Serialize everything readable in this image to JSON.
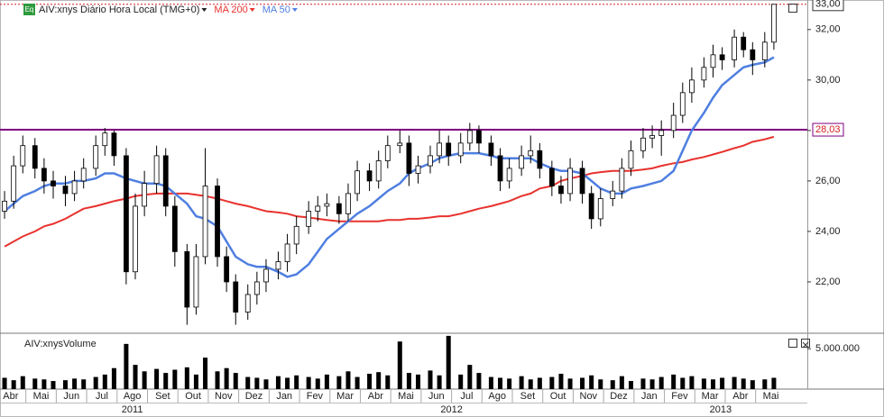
{
  "chart_data": {
    "type": "candlestick",
    "title": "AIV:xnys Diário Hora Local (TMG+0)",
    "badge": "Eq",
    "x": [
      0.3,
      0.6,
      0.9,
      1.3,
      1.6,
      1.9,
      2.3,
      2.6,
      2.9,
      3.3,
      3.6,
      3.9,
      4.3,
      4.6,
      4.9,
      5.3,
      5.6,
      5.9,
      6.3,
      6.6,
      6.9,
      7.3,
      7.6,
      7.9,
      8.3,
      8.6,
      8.9,
      9.3,
      9.6,
      9.9,
      10.3,
      10.6,
      10.9,
      11.3,
      11.6,
      11.9,
      12.3,
      12.6,
      12.9,
      13.3,
      13.6,
      13.9,
      14.3,
      14.6,
      14.9,
      15.3,
      15.6,
      15.9,
      16.3,
      16.6,
      16.9,
      17.3,
      17.6,
      17.9,
      18.3,
      18.6,
      18.9,
      19.3,
      19.6,
      19.9,
      20.3,
      20.6,
      20.9,
      21.3,
      21.6,
      21.9,
      22.3,
      22.6,
      22.9,
      23.3,
      23.6,
      23.9,
      24.3,
      24.6,
      24.9,
      25.3,
      25.6
    ],
    "open": [
      24.8,
      25.2,
      26.6,
      27.4,
      26.5,
      26.0,
      25.8,
      25.5,
      26.0,
      26.5,
      27.4,
      27.9,
      27.0,
      22.4,
      25.0,
      25.9,
      27.0,
      25.0,
      23.2,
      21.0,
      23.0,
      25.8,
      23.0,
      22.0,
      20.8,
      21.5,
      22.0,
      22.5,
      22.8,
      23.5,
      24.2,
      24.8,
      25.0,
      25.1,
      24.7,
      25.5,
      26.4,
      26.0,
      26.8,
      27.4,
      27.5,
      26.3,
      26.6,
      27.0,
      27.5,
      27.0,
      27.5,
      28.0,
      27.5,
      27.0,
      26.0,
      26.5,
      27.0,
      27.2,
      26.5,
      25.8,
      25.5,
      26.5,
      25.5,
      24.5,
      25.3,
      25.6,
      26.5,
      27.2,
      27.7,
      27.8,
      28.0,
      28.6,
      29.5,
      30.0,
      30.5,
      31.0,
      30.8,
      31.7,
      31.2,
      30.8,
      31.5
    ],
    "high": [
      25.6,
      27.0,
      27.8,
      27.7,
      26.9,
      26.4,
      26.2,
      26.4,
      26.9,
      27.8,
      28.1,
      28.0,
      27.3,
      25.5,
      26.4,
      27.4,
      27.3,
      25.4,
      23.5,
      23.5,
      27.3,
      26.1,
      23.4,
      22.3,
      21.9,
      22.4,
      22.9,
      23.2,
      23.9,
      24.6,
      25.2,
      25.4,
      25.5,
      25.4,
      25.9,
      26.8,
      26.7,
      27.2,
      27.8,
      28.0,
      27.8,
      27.0,
      27.4,
      28.0,
      27.8,
      27.9,
      28.3,
      28.2,
      27.8,
      27.3,
      26.9,
      27.4,
      27.8,
      27.5,
      26.8,
      26.2,
      26.9,
      26.8,
      25.8,
      25.7,
      26.0,
      26.9,
      27.6,
      28.1,
      28.2,
      28.4,
      29.1,
      29.9,
      30.5,
      30.9,
      31.4,
      31.3,
      32.0,
      31.9,
      31.5,
      31.9,
      33.0
    ],
    "low": [
      24.5,
      24.9,
      26.3,
      26.1,
      25.5,
      25.3,
      25.0,
      25.2,
      25.7,
      26.2,
      27.0,
      26.6,
      21.9,
      22.1,
      24.6,
      25.5,
      24.6,
      22.6,
      20.3,
      20.7,
      22.7,
      22.6,
      21.6,
      20.3,
      20.5,
      21.1,
      21.6,
      22.1,
      22.4,
      23.1,
      23.9,
      24.4,
      24.6,
      24.3,
      24.4,
      25.2,
      25.6,
      25.7,
      26.5,
      27.1,
      25.8,
      25.9,
      26.3,
      26.7,
      26.6,
      26.7,
      27.2,
      27.1,
      26.6,
      25.6,
      25.7,
      26.2,
      26.7,
      26.1,
      25.4,
      25.1,
      25.2,
      25.1,
      24.1,
      24.2,
      25.0,
      25.3,
      26.2,
      26.9,
      27.3,
      27.0,
      27.7,
      28.3,
      29.1,
      29.7,
      30.1,
      30.4,
      30.5,
      30.9,
      30.2,
      30.5,
      31.2
    ],
    "close": [
      25.2,
      26.6,
      27.4,
      26.5,
      26.0,
      25.8,
      25.5,
      26.0,
      26.5,
      27.4,
      27.9,
      27.0,
      22.4,
      25.0,
      25.9,
      27.0,
      25.0,
      23.2,
      21.0,
      23.0,
      25.8,
      23.0,
      22.0,
      20.8,
      21.5,
      22.0,
      22.5,
      22.8,
      23.5,
      24.2,
      24.8,
      25.0,
      25.1,
      24.7,
      25.5,
      26.4,
      26.0,
      26.8,
      27.4,
      27.5,
      26.3,
      26.6,
      27.0,
      27.5,
      27.0,
      27.5,
      28.0,
      27.5,
      27.0,
      26.0,
      26.5,
      27.0,
      27.2,
      26.5,
      25.8,
      25.5,
      26.5,
      25.5,
      24.5,
      25.3,
      25.6,
      26.5,
      27.2,
      27.7,
      27.8,
      28.0,
      28.6,
      29.5,
      30.0,
      30.5,
      31.0,
      30.8,
      31.7,
      31.2,
      30.8,
      31.5,
      33.0
    ],
    "overlays": [
      {
        "name": "MA 200",
        "color": "#e8322e",
        "values": [
          23.4,
          23.6,
          23.8,
          24.0,
          24.2,
          24.3,
          24.5,
          24.7,
          24.9,
          25.0,
          25.1,
          25.2,
          25.3,
          25.4,
          25.45,
          25.5,
          25.5,
          25.5,
          25.5,
          25.45,
          25.4,
          25.3,
          25.2,
          25.1,
          25.0,
          24.9,
          24.8,
          24.75,
          24.7,
          24.6,
          24.55,
          24.5,
          24.45,
          24.4,
          24.4,
          24.4,
          24.4,
          24.4,
          24.45,
          24.45,
          24.5,
          24.5,
          24.55,
          24.6,
          24.6,
          24.7,
          24.8,
          24.9,
          25.0,
          25.1,
          25.2,
          25.4,
          25.5,
          25.7,
          25.8,
          26.0,
          26.1,
          26.2,
          26.3,
          26.35,
          26.4,
          26.4,
          26.4,
          26.45,
          26.5,
          26.6,
          26.7,
          26.75,
          26.85,
          26.95,
          27.05,
          27.15,
          27.3,
          27.4,
          27.55,
          27.65,
          27.75
        ]
      },
      {
        "name": "MA 50",
        "color": "#4f7fe0",
        "values": [
          24.8,
          25.1,
          25.4,
          25.6,
          25.8,
          25.9,
          25.9,
          26.0,
          26.0,
          26.1,
          26.3,
          26.3,
          26.1,
          26.0,
          25.9,
          25.9,
          25.8,
          25.5,
          25.1,
          24.6,
          24.5,
          24.2,
          23.6,
          23.0,
          22.7,
          22.6,
          22.6,
          22.4,
          22.2,
          22.3,
          22.7,
          23.2,
          23.7,
          24.1,
          24.4,
          24.7,
          25.0,
          25.3,
          25.6,
          25.9,
          26.3,
          26.5,
          26.7,
          26.9,
          27.0,
          27.1,
          27.1,
          27.1,
          27.0,
          26.9,
          26.9,
          26.9,
          26.9,
          26.7,
          26.5,
          26.4,
          26.4,
          26.3,
          26.0,
          25.7,
          25.5,
          25.5,
          25.7,
          25.8,
          25.9,
          26.0,
          26.4,
          27.2,
          28.0,
          28.7,
          29.3,
          29.8,
          30.2,
          30.5,
          30.6,
          30.7,
          30.9
        ]
      }
    ],
    "ylim": [
      20,
      33.1
    ],
    "yticks": [
      {
        "value": 22,
        "label": "22,00"
      },
      {
        "value": 24,
        "label": "24,00"
      },
      {
        "value": 26,
        "label": "26,00"
      },
      {
        "value": 28,
        "label": "28,00"
      },
      {
        "value": 30,
        "label": "30,00"
      },
      {
        "value": 32,
        "label": "32,00"
      }
    ],
    "last_price": {
      "value": 33,
      "label": "33,00",
      "color": "#d02020"
    },
    "horizontal_line": {
      "value": 28.03,
      "label": "28,03",
      "color": "#800080"
    },
    "xlim": [
      0.15,
      26.7
    ],
    "xticks": [
      {
        "value": 0.5,
        "label": "Abr"
      },
      {
        "value": 1.5,
        "label": "Mai"
      },
      {
        "value": 2.5,
        "label": "Jun"
      },
      {
        "value": 3.5,
        "label": "Jul"
      },
      {
        "value": 4.5,
        "label": "Ago"
      },
      {
        "value": 5.5,
        "label": "Set"
      },
      {
        "value": 6.5,
        "label": "Out"
      },
      {
        "value": 7.5,
        "label": "Nov"
      },
      {
        "value": 8.5,
        "label": "Dez"
      },
      {
        "value": 9.5,
        "label": "Jan"
      },
      {
        "value": 10.5,
        "label": "Fev"
      },
      {
        "value": 11.5,
        "label": "Mar"
      },
      {
        "value": 12.5,
        "label": "Abr"
      },
      {
        "value": 13.5,
        "label": "Mai"
      },
      {
        "value": 14.5,
        "label": "Jun"
      },
      {
        "value": 15.5,
        "label": "Jul"
      },
      {
        "value": 16.5,
        "label": "Ago"
      },
      {
        "value": 17.5,
        "label": "Set"
      },
      {
        "value": 18.5,
        "label": "Out"
      },
      {
        "value": 19.5,
        "label": "Nov"
      },
      {
        "value": 20.5,
        "label": "Dez"
      },
      {
        "value": 21.5,
        "label": "Jan"
      },
      {
        "value": 22.5,
        "label": "Fev"
      },
      {
        "value": 23.5,
        "label": "Mar"
      },
      {
        "value": 24.5,
        "label": "Abr"
      },
      {
        "value": 25.5,
        "label": "Mai"
      }
    ],
    "year_ticks": [
      {
        "value": 4.5,
        "label": "2011"
      },
      {
        "value": 15,
        "label": "2012"
      },
      {
        "value": 23.85,
        "label": "2013"
      }
    ],
    "volume": {
      "title": "AIV:xnysVolume",
      "color": "#000000",
      "values": [
        1400000,
        1100000,
        1600000,
        1300000,
        1200000,
        1000000,
        1100000,
        1300000,
        1200000,
        1500000,
        1800000,
        2600000,
        5600000,
        3000000,
        2200000,
        2500000,
        2000000,
        2400000,
        2700000,
        1800000,
        3900000,
        2200000,
        2600000,
        2000000,
        1500000,
        1400000,
        1200000,
        1600000,
        1400000,
        1700000,
        1500000,
        1300000,
        1800000,
        1600000,
        2200000,
        1500000,
        1900000,
        2100000,
        1700000,
        5900000,
        2000000,
        1800000,
        2300000,
        1700000,
        6600000,
        1800000,
        3000000,
        2000000,
        1500000,
        1400000,
        1300000,
        1600000,
        1200000,
        1400000,
        1500000,
        1900000,
        1300000,
        1400000,
        1700000,
        1200000,
        1100000,
        1600000,
        1000000,
        1300000,
        1200000,
        1500000,
        1800000,
        1400000,
        1600000,
        1300000,
        1200000,
        1400000,
        1500000,
        1300000,
        1100000,
        1200000,
        1400000
      ],
      "ylim": [
        0,
        6700000
      ],
      "yticks": [
        {
          "value": 5000000,
          "label": "5.000.000"
        }
      ]
    }
  }
}
